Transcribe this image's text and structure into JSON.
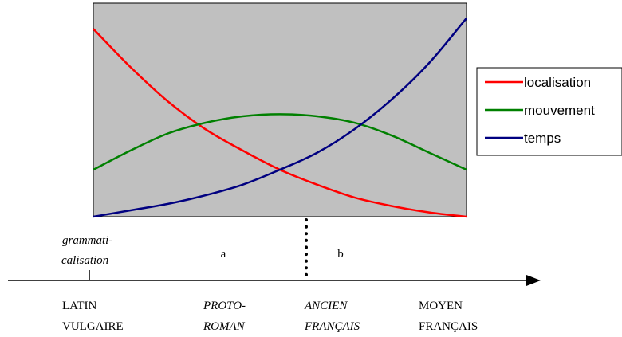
{
  "chart_data": {
    "type": "line",
    "x": [
      0,
      1,
      2,
      3,
      4,
      5,
      6,
      7,
      8,
      9,
      10
    ],
    "ylim": [
      0,
      100
    ],
    "grid": false,
    "legend_position": "right",
    "plot_background": "#c0c0c0",
    "series": [
      {
        "name": "localisation",
        "color": "#ff0000",
        "values": [
          88,
          70,
          54,
          41,
          31,
          22,
          15,
          9,
          5,
          2,
          0
        ]
      },
      {
        "name": "mouvement",
        "color": "#008000",
        "values": [
          22,
          31,
          39,
          44,
          47,
          48,
          47,
          44,
          38,
          30,
          22
        ]
      },
      {
        "name": "temps",
        "color": "#000080",
        "values": [
          0,
          3,
          6,
          10,
          15,
          22,
          30,
          41,
          55,
          72,
          93
        ]
      }
    ]
  },
  "timeline": {
    "marker_label": "grammati-\ncalisation",
    "region_a": "a",
    "region_b": "b",
    "periods": [
      {
        "line1": "LATIN",
        "line2": "VULGAIRE",
        "italic": false
      },
      {
        "line1": "PROTO-",
        "line2": "ROMAN",
        "italic": true
      },
      {
        "line1": "ANCIEN",
        "line2": "FRANÇAIS",
        "italic": true
      },
      {
        "line1": "MOYEN",
        "line2": "FRANÇAIS",
        "italic": false
      }
    ]
  }
}
